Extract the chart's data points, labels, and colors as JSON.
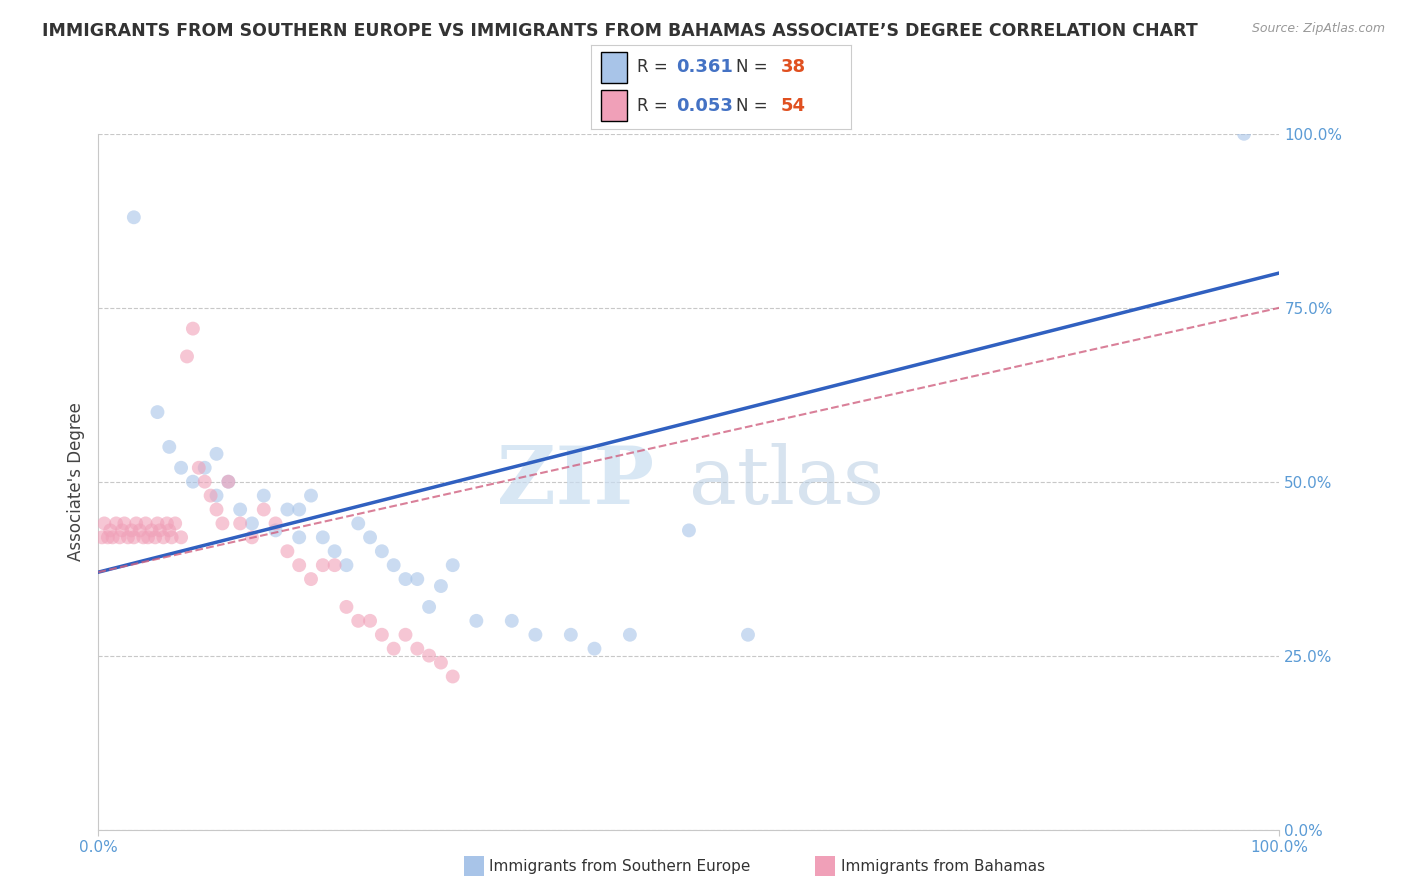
{
  "title": "IMMIGRANTS FROM SOUTHERN EUROPE VS IMMIGRANTS FROM BAHAMAS ASSOCIATE’S DEGREE CORRELATION CHART",
  "source": "Source: ZipAtlas.com",
  "ylabel": "Associate's Degree",
  "ytick_labels": [
    "0.0%",
    "25.0%",
    "50.0%",
    "75.0%",
    "100.0%"
  ],
  "ytick_vals": [
    0,
    25,
    50,
    75,
    100
  ],
  "xtick_labels": [
    "0.0%",
    "100.0%"
  ],
  "xtick_vals": [
    0,
    100
  ],
  "xlim": [
    0,
    100
  ],
  "ylim": [
    0,
    100
  ],
  "watermark_zip": "ZIP",
  "watermark_atlas": "atlas",
  "legend_R1": "0.361",
  "legend_N1": "38",
  "legend_R2": "0.053",
  "legend_N2": "54",
  "color_blue_scatter": "#a8c4e8",
  "color_pink_scatter": "#f0a0b8",
  "color_blue_line": "#3060c0",
  "color_pink_line": "#d06080",
  "blue_scatter_x": [
    3,
    5,
    6,
    7,
    8,
    9,
    10,
    10,
    11,
    12,
    13,
    14,
    15,
    16,
    17,
    17,
    18,
    19,
    20,
    21,
    22,
    23,
    24,
    25,
    26,
    27,
    28,
    29,
    30,
    32,
    35,
    37,
    40,
    42,
    45,
    50,
    55,
    97
  ],
  "blue_scatter_y": [
    88,
    60,
    55,
    52,
    50,
    52,
    48,
    54,
    50,
    46,
    44,
    48,
    43,
    46,
    42,
    46,
    48,
    42,
    40,
    38,
    44,
    42,
    40,
    38,
    36,
    36,
    32,
    35,
    38,
    30,
    30,
    28,
    28,
    26,
    28,
    43,
    28,
    100
  ],
  "pink_scatter_x": [
    0.3,
    0.5,
    0.8,
    1,
    1.2,
    1.5,
    1.8,
    2,
    2.2,
    2.5,
    2.8,
    3,
    3.2,
    3.5,
    3.8,
    4,
    4.2,
    4.5,
    4.8,
    5,
    5.2,
    5.5,
    5.8,
    6,
    6.2,
    6.5,
    7,
    7.5,
    8,
    8.5,
    9,
    9.5,
    10,
    10.5,
    11,
    12,
    13,
    14,
    15,
    16,
    17,
    18,
    19,
    20,
    21,
    22,
    23,
    24,
    25,
    26,
    27,
    28,
    29,
    30
  ],
  "pink_scatter_y": [
    42,
    44,
    42,
    43,
    42,
    44,
    42,
    43,
    44,
    42,
    43,
    42,
    44,
    43,
    42,
    44,
    42,
    43,
    42,
    44,
    43,
    42,
    44,
    43,
    42,
    44,
    42,
    68,
    72,
    52,
    50,
    48,
    46,
    44,
    50,
    44,
    42,
    46,
    44,
    40,
    38,
    36,
    38,
    38,
    32,
    30,
    30,
    28,
    26,
    28,
    26,
    25,
    24,
    22
  ],
  "blue_line_x": [
    0,
    100
  ],
  "blue_line_y": [
    37,
    80
  ],
  "pink_line_x": [
    0,
    100
  ],
  "pink_line_y": [
    37,
    75
  ],
  "scatter_size": 100,
  "scatter_alpha": 0.6,
  "grid_color": "#c8c8c8",
  "grid_style": "--",
  "bg_color": "#ffffff",
  "title_color": "#333333",
  "title_fontsize": 12.5,
  "tick_color": "#5b9bd5",
  "ylabel_color": "#444444",
  "bottom_legend_label1": "Immigrants from Southern Europe",
  "bottom_legend_label2": "Immigrants from Bahamas"
}
